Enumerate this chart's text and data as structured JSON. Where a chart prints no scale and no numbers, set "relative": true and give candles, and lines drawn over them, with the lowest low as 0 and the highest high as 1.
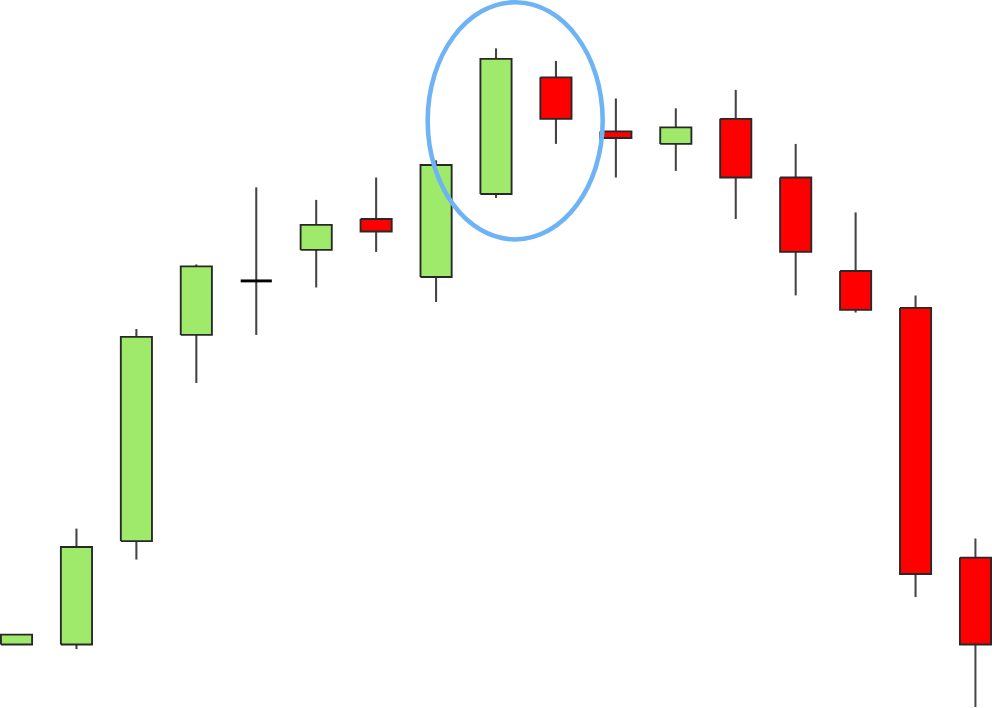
{
  "chart_data": {
    "type": "candlestick",
    "relative": true,
    "categories": [
      null,
      null,
      null,
      null,
      null,
      null,
      null,
      null,
      null,
      null,
      null,
      null,
      null,
      null,
      null,
      null,
      null
    ],
    "ohlc": [
      [
        0.095,
        0.11,
        0.095,
        0.11
      ],
      [
        0.095,
        0.271,
        0.088,
        0.243
      ],
      [
        0.252,
        0.574,
        0.224,
        0.562
      ],
      [
        0.565,
        0.672,
        0.492,
        0.669
      ],
      [
        0.647,
        0.789,
        0.565,
        0.647
      ],
      [
        0.694,
        0.77,
        0.637,
        0.732
      ],
      [
        0.741,
        0.804,
        0.691,
        0.722
      ],
      [
        0.653,
        0.83,
        0.615,
        0.823
      ],
      [
        0.779,
        1,
        0.773,
        0.984
      ],
      [
        0.956,
        0.981,
        0.855,
        0.893
      ],
      [
        0.874,
        0.924,
        0.804,
        0.864
      ],
      [
        0.855,
        0.909,
        0.814,
        0.88
      ],
      [
        0.893,
        0.937,
        0.741,
        0.804
      ],
      [
        0.804,
        0.855,
        0.625,
        0.691
      ],
      [
        0.662,
        0.751,
        0.599,
        0.603
      ],
      [
        0.606,
        0.625,
        0.167,
        0.202
      ],
      [
        0.227,
        0.256,
        0,
        0.095
      ]
    ],
    "colors": [
      "#9fea6a",
      "#9fea6a",
      "#9fea6a",
      "#9fea6a",
      "#000000",
      "#9fea6a",
      "#ff0000",
      "#9fea6a",
      "#9fea6a",
      "#ff0000",
      "#ff0000",
      "#9fea6a",
      "#ff0000",
      "#ff0000",
      "#ff0000",
      "#ff0000",
      "#ff0000"
    ]
  }
}
